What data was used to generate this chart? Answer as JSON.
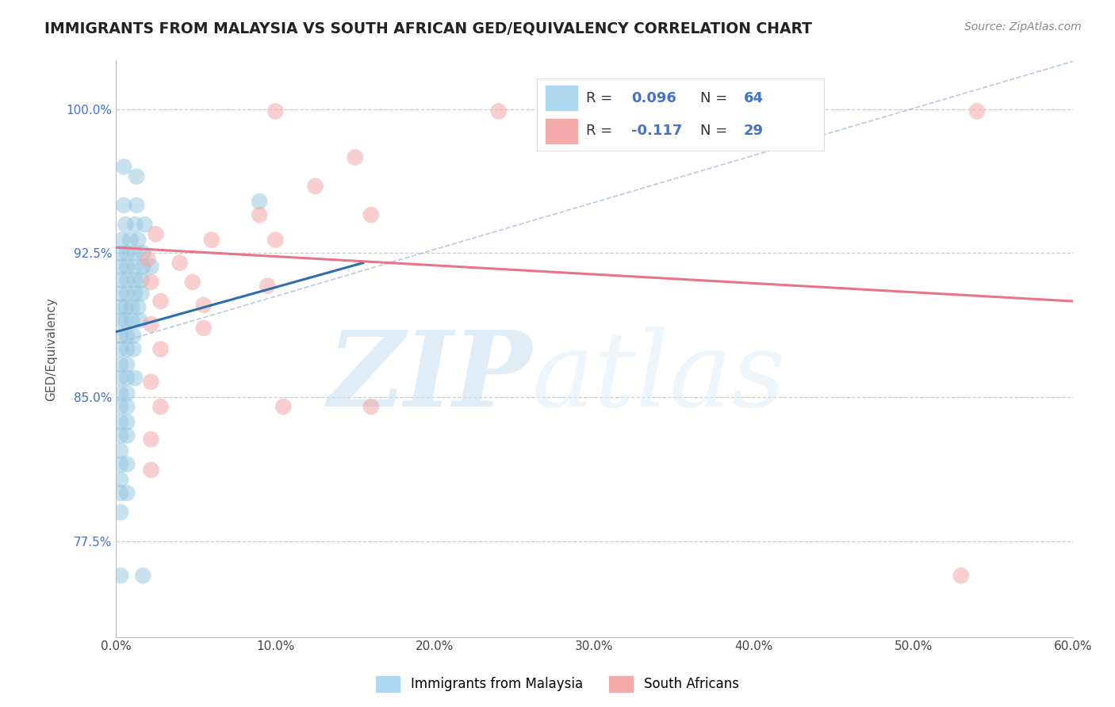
{
  "title": "IMMIGRANTS FROM MALAYSIA VS SOUTH AFRICAN GED/EQUIVALENCY CORRELATION CHART",
  "source": "Source: ZipAtlas.com",
  "ylabel": "GED/Equivalency",
  "xlim": [
    0.0,
    0.6
  ],
  "ylim": [
    0.725,
    1.025
  ],
  "yticks": [
    0.775,
    0.85,
    0.925,
    1.0
  ],
  "ytick_labels": [
    "77.5%",
    "85.0%",
    "92.5%",
    "100.0%"
  ],
  "xticks": [
    0.0,
    0.1,
    0.2,
    0.3,
    0.4,
    0.5,
    0.6
  ],
  "xtick_labels": [
    "0.0%",
    "10.0%",
    "20.0%",
    "30.0%",
    "40.0%",
    "50.0%",
    "60.0%"
  ],
  "blue_R": 0.096,
  "blue_N": 64,
  "pink_R": -0.117,
  "pink_N": 29,
  "blue_color": "#92c5de",
  "pink_color": "#f4a6a6",
  "blue_line_color": "#2c6fad",
  "pink_line_color": "#e8748a",
  "legend_blue_label": "Immigrants from Malaysia",
  "legend_pink_label": "South Africans",
  "watermark_zip": "ZIP",
  "watermark_atlas": "atlas",
  "background_color": "#ffffff",
  "blue_scatter": [
    [
      0.005,
      0.97
    ],
    [
      0.013,
      0.965
    ],
    [
      0.005,
      0.95
    ],
    [
      0.013,
      0.95
    ],
    [
      0.006,
      0.94
    ],
    [
      0.012,
      0.94
    ],
    [
      0.018,
      0.94
    ],
    [
      0.004,
      0.932
    ],
    [
      0.009,
      0.932
    ],
    [
      0.014,
      0.932
    ],
    [
      0.003,
      0.925
    ],
    [
      0.007,
      0.925
    ],
    [
      0.012,
      0.925
    ],
    [
      0.017,
      0.925
    ],
    [
      0.003,
      0.918
    ],
    [
      0.007,
      0.918
    ],
    [
      0.012,
      0.918
    ],
    [
      0.017,
      0.918
    ],
    [
      0.022,
      0.918
    ],
    [
      0.003,
      0.911
    ],
    [
      0.007,
      0.911
    ],
    [
      0.012,
      0.911
    ],
    [
      0.016,
      0.911
    ],
    [
      0.003,
      0.904
    ],
    [
      0.007,
      0.904
    ],
    [
      0.012,
      0.904
    ],
    [
      0.016,
      0.904
    ],
    [
      0.003,
      0.897
    ],
    [
      0.006,
      0.897
    ],
    [
      0.01,
      0.897
    ],
    [
      0.014,
      0.897
    ],
    [
      0.003,
      0.89
    ],
    [
      0.006,
      0.89
    ],
    [
      0.01,
      0.89
    ],
    [
      0.015,
      0.89
    ],
    [
      0.003,
      0.882
    ],
    [
      0.007,
      0.882
    ],
    [
      0.011,
      0.882
    ],
    [
      0.003,
      0.875
    ],
    [
      0.007,
      0.875
    ],
    [
      0.011,
      0.875
    ],
    [
      0.003,
      0.867
    ],
    [
      0.007,
      0.867
    ],
    [
      0.003,
      0.86
    ],
    [
      0.007,
      0.86
    ],
    [
      0.012,
      0.86
    ],
    [
      0.003,
      0.852
    ],
    [
      0.007,
      0.852
    ],
    [
      0.003,
      0.845
    ],
    [
      0.007,
      0.845
    ],
    [
      0.003,
      0.837
    ],
    [
      0.007,
      0.837
    ],
    [
      0.003,
      0.83
    ],
    [
      0.007,
      0.83
    ],
    [
      0.003,
      0.822
    ],
    [
      0.003,
      0.815
    ],
    [
      0.007,
      0.815
    ],
    [
      0.003,
      0.807
    ],
    [
      0.003,
      0.8
    ],
    [
      0.007,
      0.8
    ],
    [
      0.003,
      0.79
    ],
    [
      0.003,
      0.757
    ],
    [
      0.017,
      0.757
    ],
    [
      0.09,
      0.952
    ]
  ],
  "pink_scatter": [
    [
      0.1,
      0.999
    ],
    [
      0.24,
      0.999
    ],
    [
      0.27,
      0.999
    ],
    [
      0.38,
      0.999
    ],
    [
      0.54,
      0.999
    ],
    [
      0.15,
      0.975
    ],
    [
      0.125,
      0.96
    ],
    [
      0.09,
      0.945
    ],
    [
      0.16,
      0.945
    ],
    [
      0.025,
      0.935
    ],
    [
      0.06,
      0.932
    ],
    [
      0.1,
      0.932
    ],
    [
      0.02,
      0.922
    ],
    [
      0.04,
      0.92
    ],
    [
      0.022,
      0.91
    ],
    [
      0.048,
      0.91
    ],
    [
      0.095,
      0.908
    ],
    [
      0.028,
      0.9
    ],
    [
      0.055,
      0.898
    ],
    [
      0.022,
      0.888
    ],
    [
      0.055,
      0.886
    ],
    [
      0.028,
      0.875
    ],
    [
      0.022,
      0.858
    ],
    [
      0.028,
      0.845
    ],
    [
      0.105,
      0.845
    ],
    [
      0.16,
      0.845
    ],
    [
      0.022,
      0.828
    ],
    [
      0.022,
      0.812
    ],
    [
      0.53,
      0.757
    ]
  ],
  "blue_line_x": [
    0.0,
    0.155
  ],
  "blue_line_y": [
    0.884,
    0.92
  ],
  "pink_line_x": [
    0.0,
    0.6
  ],
  "pink_line_y": [
    0.928,
    0.9
  ],
  "diag_line_x": [
    0.0,
    0.6
  ],
  "diag_line_y": [
    0.878,
    1.025
  ]
}
